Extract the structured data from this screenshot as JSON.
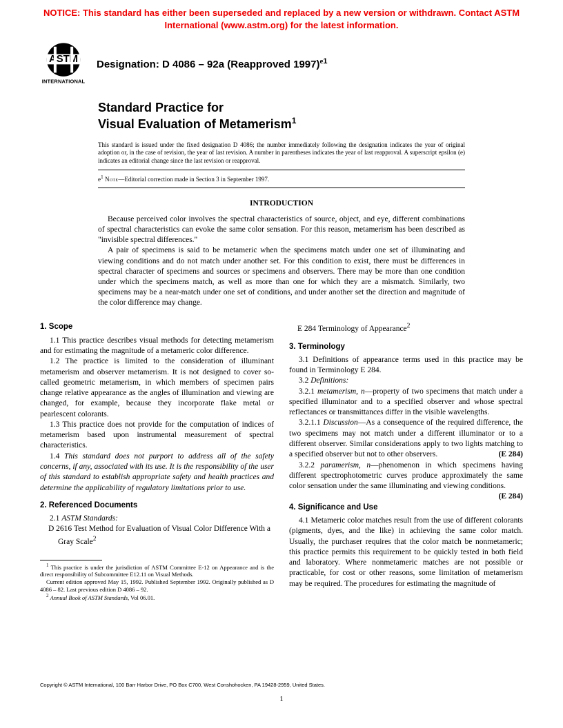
{
  "notice": {
    "text": "NOTICE: This standard has either been superseded and replaced by a new version or withdrawn.  Contact ASTM International (www.astm.org) for the latest information.",
    "color": "#ee0000"
  },
  "logo": {
    "top_text": "ASTM",
    "bottom_text": "INTERNATIONAL",
    "fill": "#000000"
  },
  "designation": {
    "label": "Designation: D 4086 – 92a (Reapproved 1997)",
    "superscript": "e1"
  },
  "title": {
    "line1": "Standard Practice for",
    "line2": "Visual Evaluation of Metamerism",
    "superscript": "1"
  },
  "issuance": "This standard is issued under the fixed designation D 4086; the number immediately following the designation indicates the year of original adoption or, in the case of revision, the year of last revision. A number in parentheses indicates the year of last reapproval. A superscript epsilon (e) indicates an editorial change since the last revision or reapproval.",
  "editorial_note": {
    "prefix": "e",
    "sup": "1",
    "label": "Note",
    "text": "—Editorial correction made in Section 3 in September 1997."
  },
  "intro": {
    "heading": "INTRODUCTION",
    "p1": "Because perceived color involves the spectral characteristics of source, object, and eye, different combinations of spectral characteristics can evoke the same color sensation. For this reason, metamerism has been described as \"invisible spectral differences.\"",
    "p2": "A pair of specimens is said to be metameric when the specimens match under one set of illuminating and viewing conditions and do not match under another set. For this condition to exist, there must be differences in spectral character of specimens and sources or specimens and observers. There may be more than one condition under which the specimens match, as well as more than one for which they are a mismatch. Similarly, two specimens may be a near-match under one set of conditions, and under another set the direction and magnitude of the color difference may change."
  },
  "sections": {
    "scope": {
      "heading": "1. Scope",
      "p11": "1.1 This practice describes visual methods for detecting metamerism and for estimating the magnitude of a metameric color difference.",
      "p12": "1.2  The practice is limited to the consideration of illuminant metamerism and observer metamerism. It is not designed to cover so-called geometric metamerism, in which members of specimen pairs change relative appearance as the angles of illumination and viewing are changed, for example, because they incorporate flake metal or pearlescent colorants.",
      "p13": "1.3 This practice does not provide for the computation of indices of metamerism based upon instrumental measurement of spectral characteristics.",
      "p14_html": "1.4 <em class=\"term\">This standard does not purport to address all of the safety concerns, if any, associated with its use. It is the responsibility of the user of this standard to establish appropriate safety and health practices and determine the applicability of regulatory limitations prior to use.</em>"
    },
    "refdocs": {
      "heading": "2. Referenced Documents",
      "p21_html": "2.1 <em class=\"term\">ASTM Standards:</em>",
      "d2616_html": "D 2616  Test Method for Evaluation of Visual Color Difference With a Gray Scale<sup>2</sup>",
      "e284_html": "E 284  Terminology of Appearance<sup>2</sup>"
    },
    "terminology": {
      "heading": "3. Terminology",
      "p31": "3.1 Definitions of appearance terms used in this practice may be found in Terminology E 284.",
      "p32_html": "3.2 <em class=\"term\">Definitions:</em>",
      "p321_html": "3.2.1 <em class=\"term\">metamerism</em>, <em class=\"term\">n</em>—property of two specimens that match under a specified illuminator and to a specified observer and whose spectral reflectances or transmittances differ in the visible wavelengths.",
      "p3211_html": "3.2.1.1 <em class=\"term\">Discussion</em>—As a consequence of the required difference, the two specimens may not match under a different illuminator or to a different observer. Similar considerations apply to two lights matching to a specified observer but not to other observers.<span class=\"ref-right\">(E 284)</span>",
      "p322_html": "3.2.2 <em class=\"term\">paramerism</em>, <em class=\"term\">n</em>—phenomenon in which specimens having different spectrophotometric curves produce approximately the same color sensation under the same illuminating and viewing conditions.<span class=\"ref-right\">(E 284)</span>"
    },
    "significance": {
      "heading": "4. Significance and Use",
      "p41": "4.1  Metameric color matches result from the use of different colorants (pigments, dyes, and the like) in achieving the same color match. Usually, the purchaser requires that the color match be nonmetameric; this practice permits this requirement to be quickly tested in both field and laboratory. Where nonmetameric matches are not possible or practicable, for cost or other reasons, some limitation of metamerism may be required. The procedures for estimating the magnitude of"
    }
  },
  "footnotes": {
    "f1_html": "<sup>1</sup> This practice is under the jurisdiction of ASTM Committee E-12 on Appearance and is the direct responsibility of Subcommittee E12.11 on Visual Methods.",
    "f1b": "Current edition approved May 15, 1992. Published September 1992. Originally published as D 4086 – 82. Last previous edition D 4086 – 92.",
    "f2_html": "<sup>2</sup> <em class=\"term\">Annual Book of ASTM Standards</em>, Vol 06.01."
  },
  "copyright": "Copyright © ASTM International, 100 Barr Harbor Drive, PO Box C700, West Conshohocken, PA 19428-2959, United States.",
  "page_number": "1"
}
